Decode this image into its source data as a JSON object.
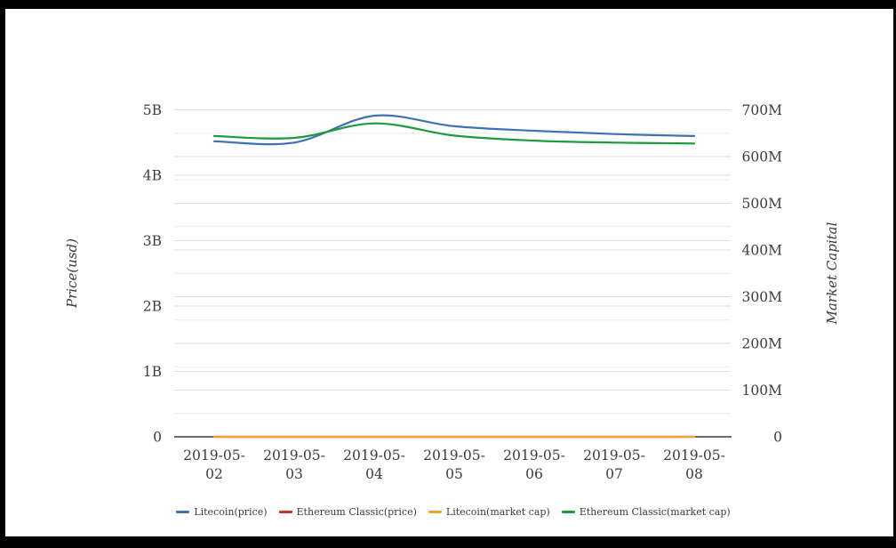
{
  "chart_data": {
    "type": "line",
    "title": "",
    "x_categories": [
      "2019-05-02",
      "2019-05-03",
      "2019-05-04",
      "2019-05-05",
      "2019-05-06",
      "2019-05-07",
      "2019-05-08"
    ],
    "series": [
      {
        "name": "Litecoin(price)",
        "color": "#4270b4",
        "axis": "left",
        "values": [
          4.52,
          4.5,
          4.91,
          4.75,
          4.68,
          4.63,
          4.6
        ]
      },
      {
        "name": "Ethereum Classic(price)",
        "color": "#c13a2a",
        "axis": "left",
        "values": [
          0,
          0,
          0,
          0,
          0,
          0,
          0
        ]
      },
      {
        "name": "Litecoin(market cap)",
        "color": "#f0a12f",
        "axis": "right",
        "values": [
          0,
          0,
          0,
          0,
          0,
          0,
          0
        ]
      },
      {
        "name": "Ethereum Classic(market cap)",
        "color": "#1a9c3f",
        "axis": "right",
        "values": [
          644,
          640,
          671,
          645,
          634,
          630,
          628
        ]
      }
    ],
    "left_axis": {
      "title": "Price(usd)",
      "unit": "B",
      "max": 5,
      "tick_values": [
        0,
        1,
        2,
        3,
        4,
        5
      ],
      "tick_labels": [
        "0",
        "1B",
        "2B",
        "3B",
        "4B",
        "5B"
      ]
    },
    "right_axis": {
      "title": "Market Capital",
      "unit": "M",
      "max": 700,
      "minor_step": 50,
      "tick_values": [
        0,
        100,
        200,
        300,
        400,
        500,
        600,
        700
      ],
      "tick_labels": [
        "0",
        "100M",
        "200M",
        "300M",
        "400M",
        "500M",
        "600M",
        "700M"
      ]
    },
    "legend_position": "bottom",
    "grid": true
  }
}
